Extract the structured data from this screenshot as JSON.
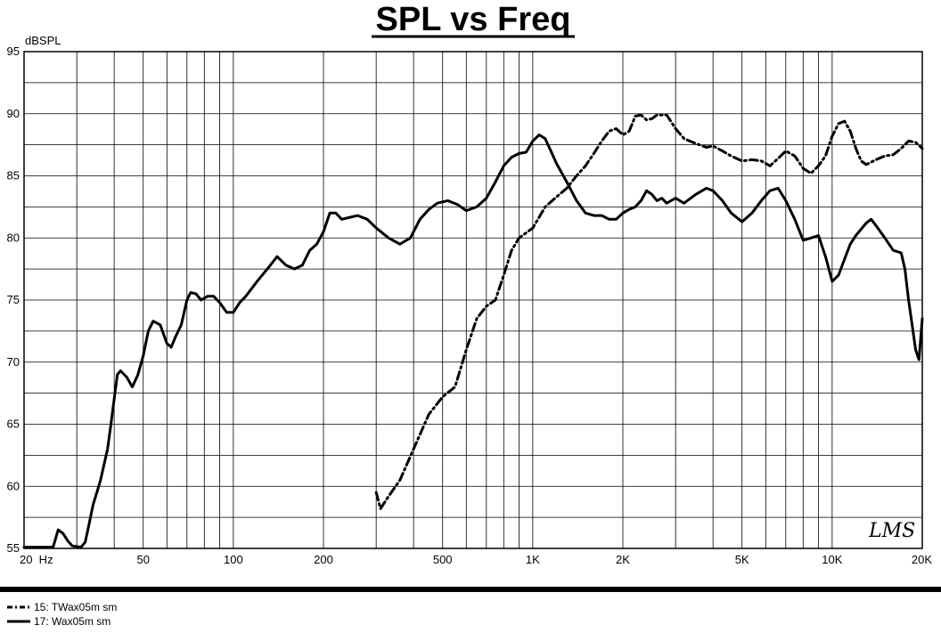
{
  "chart_data": {
    "type": "line",
    "title": "SPL vs Freq",
    "ylabel": "dBSPL",
    "xlabel": "",
    "x_scale": "log",
    "xlim": [
      20,
      20000
    ],
    "ylim": [
      55,
      95
    ],
    "grid": true,
    "y_ticks": [
      55,
      60,
      65,
      70,
      75,
      80,
      85,
      90,
      95
    ],
    "x_ticks": [
      {
        "value": 20,
        "label": "20  Hz"
      },
      {
        "value": 50,
        "label": "50"
      },
      {
        "value": 100,
        "label": "100"
      },
      {
        "value": 200,
        "label": "200"
      },
      {
        "value": 500,
        "label": "500"
      },
      {
        "value": 1000,
        "label": "1K"
      },
      {
        "value": 2000,
        "label": "2K"
      },
      {
        "value": 5000,
        "label": "5K"
      },
      {
        "value": 10000,
        "label": "10K"
      },
      {
        "value": 20000,
        "label": "20K"
      }
    ],
    "watermark": "LMS",
    "legend_position": "bottom-left",
    "series": [
      {
        "name": "15: TWax05m sm",
        "style": "dash-dot",
        "color": "#000000",
        "points": [
          [
            300,
            59.5
          ],
          [
            310,
            58.2
          ],
          [
            330,
            59.2
          ],
          [
            360,
            60.5
          ],
          [
            400,
            63.0
          ],
          [
            450,
            65.8
          ],
          [
            500,
            67.2
          ],
          [
            550,
            68.0
          ],
          [
            600,
            71.0
          ],
          [
            650,
            73.5
          ],
          [
            700,
            74.5
          ],
          [
            750,
            75.0
          ],
          [
            800,
            77.0
          ],
          [
            850,
            79.0
          ],
          [
            900,
            80.0
          ],
          [
            1000,
            80.8
          ],
          [
            1100,
            82.5
          ],
          [
            1200,
            83.3
          ],
          [
            1300,
            84.0
          ],
          [
            1400,
            85.0
          ],
          [
            1500,
            85.8
          ],
          [
            1600,
            86.8
          ],
          [
            1700,
            87.8
          ],
          [
            1800,
            88.6
          ],
          [
            1900,
            88.8
          ],
          [
            2000,
            88.3
          ],
          [
            2100,
            88.6
          ],
          [
            2200,
            89.8
          ],
          [
            2300,
            89.9
          ],
          [
            2400,
            89.5
          ],
          [
            2500,
            89.6
          ],
          [
            2600,
            89.9
          ],
          [
            2800,
            89.9
          ],
          [
            3000,
            88.8
          ],
          [
            3200,
            88.0
          ],
          [
            3500,
            87.6
          ],
          [
            3800,
            87.3
          ],
          [
            4000,
            87.4
          ],
          [
            4300,
            87.0
          ],
          [
            4600,
            86.6
          ],
          [
            5000,
            86.2
          ],
          [
            5400,
            86.3
          ],
          [
            5800,
            86.2
          ],
          [
            6200,
            85.8
          ],
          [
            6600,
            86.4
          ],
          [
            7000,
            87.0
          ],
          [
            7500,
            86.6
          ],
          [
            8000,
            85.6
          ],
          [
            8500,
            85.2
          ],
          [
            9000,
            85.8
          ],
          [
            9500,
            86.6
          ],
          [
            10000,
            88.2
          ],
          [
            10500,
            89.2
          ],
          [
            11000,
            89.4
          ],
          [
            11500,
            88.6
          ],
          [
            12000,
            87.2
          ],
          [
            12500,
            86.2
          ],
          [
            13000,
            85.9
          ],
          [
            14000,
            86.3
          ],
          [
            15000,
            86.6
          ],
          [
            16000,
            86.7
          ],
          [
            17000,
            87.2
          ],
          [
            18000,
            87.8
          ],
          [
            19000,
            87.7
          ],
          [
            20000,
            87.2
          ]
        ]
      },
      {
        "name": "17: Wax05m sm",
        "style": "solid",
        "color": "#000000",
        "points": [
          [
            20,
            55.1
          ],
          [
            25,
            55.1
          ],
          [
            26,
            56.5
          ],
          [
            27,
            56.2
          ],
          [
            28,
            55.6
          ],
          [
            29,
            55.2
          ],
          [
            31,
            55.1
          ],
          [
            32,
            55.5
          ],
          [
            33,
            57.0
          ],
          [
            34,
            58.5
          ],
          [
            35,
            59.5
          ],
          [
            36,
            60.5
          ],
          [
            38,
            63.0
          ],
          [
            39,
            65.0
          ],
          [
            40,
            67.0
          ],
          [
            41,
            69.0
          ],
          [
            42,
            69.3
          ],
          [
            44,
            68.8
          ],
          [
            46,
            68.0
          ],
          [
            48,
            69.0
          ],
          [
            50,
            70.5
          ],
          [
            52,
            72.5
          ],
          [
            54,
            73.3
          ],
          [
            57,
            73.0
          ],
          [
            60,
            71.5
          ],
          [
            62,
            71.2
          ],
          [
            64,
            72.0
          ],
          [
            67,
            73.0
          ],
          [
            70,
            75.0
          ],
          [
            72,
            75.6
          ],
          [
            75,
            75.5
          ],
          [
            78,
            75.0
          ],
          [
            82,
            75.3
          ],
          [
            86,
            75.3
          ],
          [
            90,
            74.8
          ],
          [
            95,
            74.0
          ],
          [
            100,
            74.0
          ],
          [
            105,
            74.8
          ],
          [
            110,
            75.3
          ],
          [
            120,
            76.5
          ],
          [
            130,
            77.5
          ],
          [
            140,
            78.5
          ],
          [
            150,
            77.8
          ],
          [
            160,
            77.5
          ],
          [
            170,
            77.8
          ],
          [
            180,
            79.0
          ],
          [
            190,
            79.5
          ],
          [
            200,
            80.5
          ],
          [
            210,
            82.0
          ],
          [
            220,
            82.0
          ],
          [
            230,
            81.5
          ],
          [
            240,
            81.6
          ],
          [
            260,
            81.8
          ],
          [
            280,
            81.5
          ],
          [
            300,
            80.8
          ],
          [
            330,
            80.0
          ],
          [
            360,
            79.5
          ],
          [
            390,
            80.0
          ],
          [
            420,
            81.5
          ],
          [
            450,
            82.3
          ],
          [
            480,
            82.8
          ],
          [
            520,
            83.0
          ],
          [
            560,
            82.7
          ],
          [
            600,
            82.2
          ],
          [
            650,
            82.5
          ],
          [
            700,
            83.2
          ],
          [
            750,
            84.5
          ],
          [
            800,
            85.8
          ],
          [
            850,
            86.5
          ],
          [
            900,
            86.8
          ],
          [
            950,
            86.9
          ],
          [
            1000,
            87.8
          ],
          [
            1050,
            88.3
          ],
          [
            1100,
            88.0
          ],
          [
            1150,
            87.0
          ],
          [
            1200,
            86.0
          ],
          [
            1300,
            84.5
          ],
          [
            1400,
            83.0
          ],
          [
            1500,
            82.0
          ],
          [
            1600,
            81.8
          ],
          [
            1700,
            81.8
          ],
          [
            1800,
            81.5
          ],
          [
            1900,
            81.5
          ],
          [
            2000,
            82.0
          ],
          [
            2100,
            82.3
          ],
          [
            2200,
            82.5
          ],
          [
            2300,
            83.0
          ],
          [
            2400,
            83.8
          ],
          [
            2500,
            83.5
          ],
          [
            2600,
            83.0
          ],
          [
            2700,
            83.2
          ],
          [
            2800,
            82.8
          ],
          [
            3000,
            83.2
          ],
          [
            3200,
            82.8
          ],
          [
            3500,
            83.5
          ],
          [
            3800,
            84.0
          ],
          [
            4000,
            83.8
          ],
          [
            4300,
            83.0
          ],
          [
            4600,
            82.0
          ],
          [
            5000,
            81.3
          ],
          [
            5400,
            82.0
          ],
          [
            5800,
            83.0
          ],
          [
            6200,
            83.8
          ],
          [
            6600,
            84.0
          ],
          [
            7000,
            83.0
          ],
          [
            7500,
            81.5
          ],
          [
            8000,
            79.8
          ],
          [
            8500,
            80.0
          ],
          [
            9000,
            80.2
          ],
          [
            9500,
            78.5
          ],
          [
            10000,
            76.5
          ],
          [
            10500,
            77.0
          ],
          [
            11000,
            78.3
          ],
          [
            11500,
            79.5
          ],
          [
            12000,
            80.2
          ],
          [
            13000,
            81.2
          ],
          [
            13500,
            81.5
          ],
          [
            14000,
            81.0
          ],
          [
            15000,
            80.0
          ],
          [
            16000,
            79.0
          ],
          [
            17000,
            78.8
          ],
          [
            17500,
            77.5
          ],
          [
            18000,
            75.0
          ],
          [
            18500,
            73.0
          ],
          [
            19000,
            71.0
          ],
          [
            19500,
            70.2
          ],
          [
            20000,
            73.5
          ]
        ]
      }
    ]
  }
}
